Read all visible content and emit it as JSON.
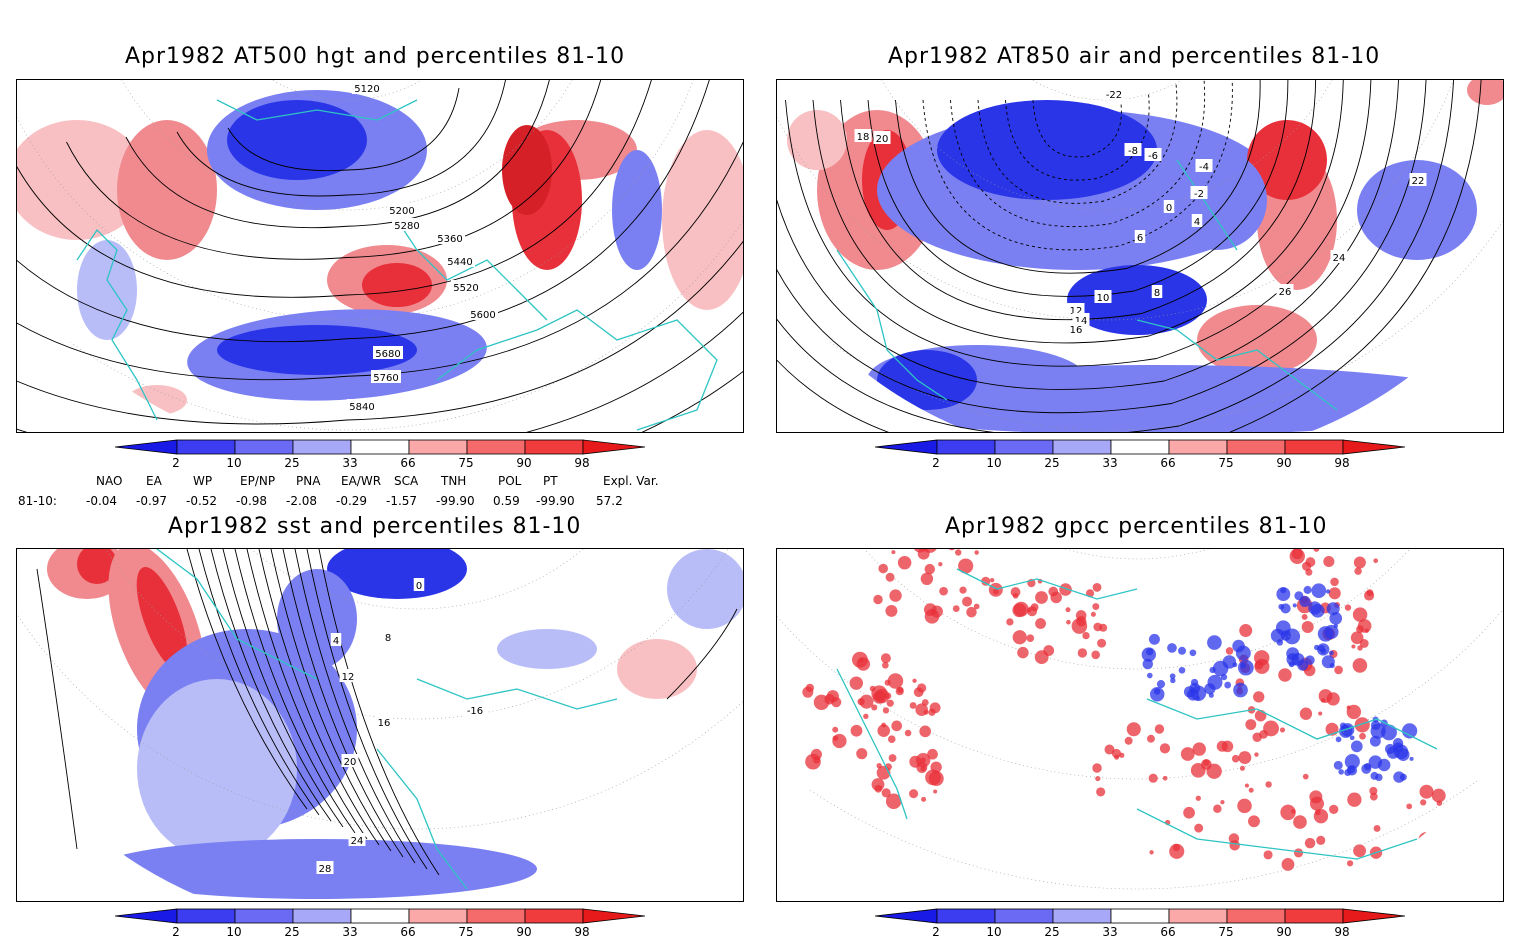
{
  "panels": [
    {
      "title": "Apr1982 AT500 hgt and percentiles 81-10",
      "contour_labels": [
        "5120",
        "5200",
        "5280",
        "5360",
        "5440",
        "5520",
        "5600",
        "5680",
        "5760",
        "5840"
      ]
    },
    {
      "title": "Apr1982 AT850 air and percentiles 81-10",
      "contour_labels": [
        "-22",
        "-8",
        "-6",
        "-4",
        "-2",
        "0",
        "4",
        "6",
        "8",
        "10",
        "12",
        "14",
        "16",
        "18",
        "20",
        "22",
        "24",
        "26"
      ]
    },
    {
      "title": "Apr1982 sst and percentiles 81-10",
      "contour_labels": [
        "0",
        "4",
        "8",
        "12",
        "16",
        "20",
        "24",
        "28",
        "-16"
      ]
    },
    {
      "title": "Apr1982 gpcc percentiles 81-10",
      "contour_labels": []
    }
  ],
  "colorbar": {
    "ticks": [
      "2",
      "10",
      "25",
      "33",
      "66",
      "75",
      "90",
      "98"
    ],
    "colors": [
      "#1a1ae6",
      "#3c3cf0",
      "#6a6af5",
      "#a8a8f9",
      "#ffffff",
      "#fba8a8",
      "#f56a6a",
      "#f03c3c",
      "#e61a1a"
    ]
  },
  "indices": {
    "headers": [
      "NAO",
      "EA",
      "WP",
      "EP/NP",
      "PNA",
      "EA/WR",
      "SCA",
      "TNH",
      "POL",
      "PT",
      "Expl. Var."
    ],
    "row_label": "81-10:",
    "values": [
      "-0.04",
      "-0.97",
      "-0.52",
      "-0.98",
      "-2.08",
      "-0.29",
      "-1.57",
      "-99.90",
      "0.59",
      "-99.90",
      "57.2"
    ]
  },
  "colors": {
    "coastline": "#2ec4c4",
    "positive": "#e8303a",
    "negative": "#2a35e8",
    "contour": "#000000"
  }
}
